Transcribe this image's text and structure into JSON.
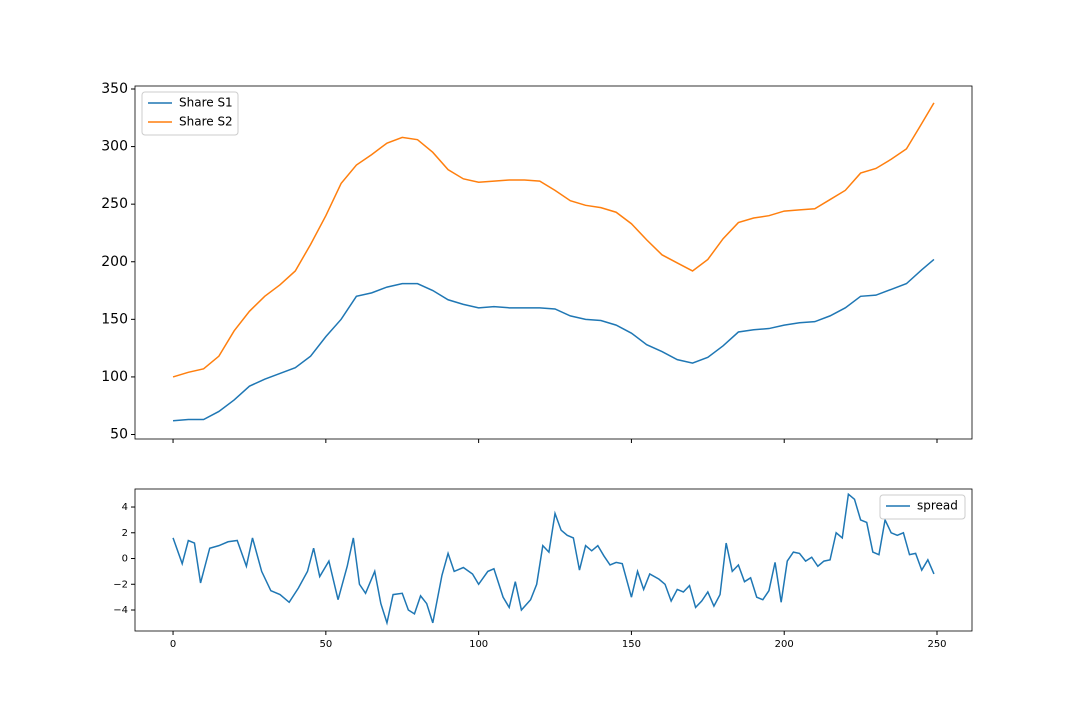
{
  "chart_data": [
    {
      "type": "line",
      "x": [
        0,
        5,
        10,
        15,
        20,
        25,
        30,
        35,
        40,
        45,
        50,
        55,
        60,
        65,
        70,
        75,
        80,
        85,
        90,
        95,
        100,
        105,
        110,
        115,
        120,
        125,
        130,
        135,
        140,
        145,
        150,
        155,
        160,
        165,
        170,
        175,
        180,
        185,
        190,
        195,
        200,
        205,
        210,
        215,
        220,
        225,
        230,
        235,
        240,
        245,
        249
      ],
      "series": [
        {
          "name": "Share S1",
          "color": "#1f77b4",
          "values": [
            62,
            63,
            63,
            70,
            80,
            92,
            98,
            103,
            108,
            118,
            135,
            150,
            170,
            173,
            178,
            181,
            181,
            175,
            167,
            163,
            160,
            161,
            160,
            160,
            160,
            159,
            153,
            150,
            149,
            145,
            138,
            128,
            122,
            115,
            112,
            117,
            127,
            139,
            141,
            142,
            145,
            147,
            148,
            153,
            160,
            170,
            171,
            176,
            181,
            193,
            202
          ]
        },
        {
          "name": "Share S2",
          "color": "#ff7f0e",
          "values": [
            100,
            104,
            107,
            118,
            140,
            157,
            170,
            180,
            192,
            215,
            240,
            268,
            284,
            293,
            303,
            308,
            306,
            295,
            280,
            272,
            269,
            270,
            271,
            271,
            270,
            262,
            253,
            249,
            247,
            243,
            233,
            219,
            206,
            199,
            192,
            202,
            220,
            234,
            238,
            240,
            244,
            245,
            246,
            254,
            262,
            277,
            281,
            289,
            298,
            320,
            338
          ]
        }
      ],
      "xlim": [
        -12.45,
        261.45
      ],
      "ylim": [
        46.1,
        352.6
      ],
      "yticks": [
        50,
        100,
        150,
        200,
        250,
        300,
        350
      ],
      "legend": "upper left"
    },
    {
      "type": "line",
      "x": [
        0,
        3,
        5,
        7,
        9,
        12,
        15,
        18,
        21,
        24,
        26,
        29,
        32,
        35,
        38,
        41,
        44,
        46,
        48,
        51,
        54,
        57,
        59,
        61,
        63,
        66,
        68,
        70,
        72,
        75,
        77,
        79,
        81,
        83,
        85,
        88,
        90,
        92,
        95,
        98,
        100,
        103,
        105,
        108,
        110,
        112,
        114,
        117,
        119,
        121,
        123,
        125,
        127,
        129,
        131,
        133,
        135,
        137,
        139,
        141,
        143,
        145,
        147,
        150,
        152,
        154,
        156,
        159,
        161,
        163,
        165,
        167,
        169,
        171,
        173,
        175,
        177,
        179,
        181,
        183,
        185,
        187,
        189,
        191,
        193,
        195,
        197,
        199,
        201,
        203,
        205,
        207,
        209,
        211,
        213,
        215,
        217,
        219,
        221,
        223,
        225,
        227,
        229,
        231,
        233,
        235,
        237,
        239,
        241,
        243,
        245,
        247,
        249
      ],
      "series": [
        {
          "name": "spread",
          "color": "#1f77b4",
          "values": [
            1.6,
            -0.4,
            1.4,
            1.2,
            -1.9,
            0.8,
            1.0,
            1.3,
            1.4,
            -0.6,
            1.6,
            -1.0,
            -2.5,
            -2.8,
            -3.4,
            -2.3,
            -1.0,
            0.8,
            -1.4,
            -0.2,
            -3.2,
            -0.6,
            1.6,
            -2.0,
            -2.7,
            -1.0,
            -3.5,
            -5.0,
            -2.8,
            -2.7,
            -4.0,
            -4.3,
            -2.9,
            -3.5,
            -5.0,
            -1.3,
            0.4,
            -1.0,
            -0.7,
            -1.2,
            -2.0,
            -1.0,
            -0.8,
            -3.0,
            -3.8,
            -1.8,
            -4.0,
            -3.2,
            -2.0,
            1.0,
            0.5,
            3.5,
            2.2,
            1.8,
            1.6,
            -0.9,
            1.0,
            0.6,
            1.0,
            0.2,
            -0.5,
            -0.3,
            -0.4,
            -3.0,
            -1.0,
            -2.4,
            -1.2,
            -1.6,
            -2.0,
            -3.3,
            -2.4,
            -2.6,
            -2.1,
            -3.8,
            -3.3,
            -2.6,
            -3.7,
            -2.8,
            1.2,
            -1.0,
            -0.5,
            -1.8,
            -1.5,
            -3.0,
            -3.2,
            -2.5,
            -0.3,
            -3.4,
            -0.2,
            0.5,
            0.4,
            -0.2,
            0.1,
            -0.6,
            -0.2,
            -0.1,
            2.0,
            1.6,
            5.0,
            4.6,
            3.0,
            2.8,
            0.5,
            0.3,
            3.0,
            2.0,
            1.8,
            2.0,
            0.3,
            0.4,
            -0.9,
            -0.1,
            -1.2
          ]
        }
      ],
      "xlim": [
        -12.45,
        261.45
      ],
      "xticks": [
        0,
        50,
        100,
        150,
        200,
        250
      ],
      "ylim": [
        -5.63,
        5.4
      ],
      "yticks": [
        {
          "value": -4,
          "label": "−4"
        },
        {
          "value": -2,
          "label": "−2"
        },
        0,
        2,
        4
      ],
      "legend": "upper right"
    }
  ]
}
